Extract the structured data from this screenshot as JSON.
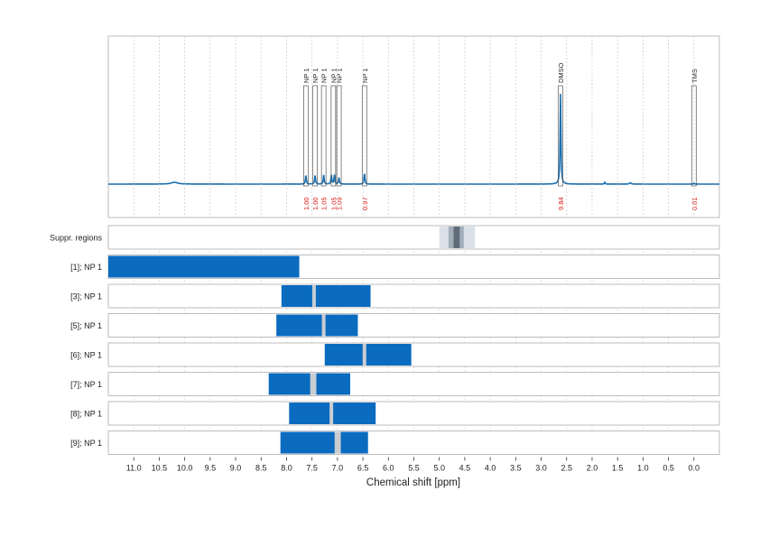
{
  "chart_data": {
    "type": "line",
    "xlabel": "Chemical shift [ppm]",
    "xlim": [
      11.5,
      -0.5
    ],
    "x_reversed": true,
    "x_ticks": [
      "11.0",
      "10.5",
      "10.0",
      "9.5",
      "9.0",
      "8.5",
      "8.0",
      "7.5",
      "7.0",
      "6.5",
      "6.0",
      "5.5",
      "5.0",
      "4.5",
      "4.0",
      "3.5",
      "3.0",
      "2.5",
      "2.0",
      "1.5",
      "1.0",
      "0.5",
      "0.0"
    ],
    "grid": true,
    "spectrum": {
      "color": "#1a6faf",
      "peaks": [
        {
          "x": 10.2,
          "h": 0.02,
          "w": 0.08
        },
        {
          "x": 7.62,
          "h": 0.1,
          "w": 0.01
        },
        {
          "x": 7.44,
          "h": 0.1,
          "w": 0.01
        },
        {
          "x": 7.27,
          "h": 0.1,
          "w": 0.01
        },
        {
          "x": 7.12,
          "h": 0.1,
          "w": 0.01
        },
        {
          "x": 7.06,
          "h": 0.1,
          "w": 0.01
        },
        {
          "x": 6.97,
          "h": 0.07,
          "w": 0.01
        },
        {
          "x": 6.47,
          "h": 0.12,
          "w": 0.01
        },
        {
          "x": 2.62,
          "h": 1.0,
          "w": 0.01
        },
        {
          "x": 1.75,
          "h": 0.02,
          "w": 0.01
        },
        {
          "x": 1.25,
          "h": 0.015,
          "w": 0.02
        },
        {
          "x": 0.0,
          "h": 0.01,
          "w": 0.01
        }
      ]
    },
    "signals": [
      {
        "label": "NP 1",
        "x": 7.62,
        "integral": "1.00"
      },
      {
        "label": "NP 1",
        "x": 7.44,
        "integral": "1.00"
      },
      {
        "label": "NP 1",
        "x": 7.27,
        "integral": "1.05"
      },
      {
        "label": "NP 1",
        "x": 7.08,
        "integral": "1.05"
      },
      {
        "label": "NP 1",
        "x": 6.97,
        "integral": "1.09"
      },
      {
        "label": "NP 1",
        "x": 6.47,
        "integral": "0.97"
      },
      {
        "label": "DMSO",
        "x": 2.62,
        "integral": "9.84"
      },
      {
        "label": "TMS",
        "x": 0.0,
        "integral": "0.01"
      }
    ],
    "tracks": [
      {
        "label": "Suppr. regions",
        "type": "suppression",
        "light": [
          5.0,
          4.3
        ],
        "mid": [
          4.82,
          4.52
        ],
        "dark": [
          4.72,
          4.6
        ]
      },
      {
        "label": "[1]; NP 1",
        "range": [
          11.5,
          7.75
        ],
        "gaps": []
      },
      {
        "label": "[3]; NP 1",
        "range": [
          8.1,
          6.35
        ],
        "gaps": [
          7.46
        ]
      },
      {
        "label": "[5]; NP 1",
        "range": [
          8.2,
          6.6
        ],
        "gaps": [
          7.27
        ]
      },
      {
        "label": "[6]; NP 1",
        "range": [
          7.25,
          5.55
        ],
        "gaps": [
          6.47
        ]
      },
      {
        "label": "[7]; NP 1",
        "range": [
          8.35,
          6.75
        ],
        "gaps": [
          7.5,
          7.45
        ]
      },
      {
        "label": "[8]; NP 1",
        "range": [
          7.95,
          6.25
        ],
        "gaps": [
          7.12
        ]
      },
      {
        "label": "[9]; NP 1",
        "range": [
          8.12,
          6.4
        ],
        "gaps": [
          7.02,
          6.97
        ]
      }
    ],
    "bar_color": "#0a6bbf",
    "gap_color": "#c9cdd2"
  }
}
